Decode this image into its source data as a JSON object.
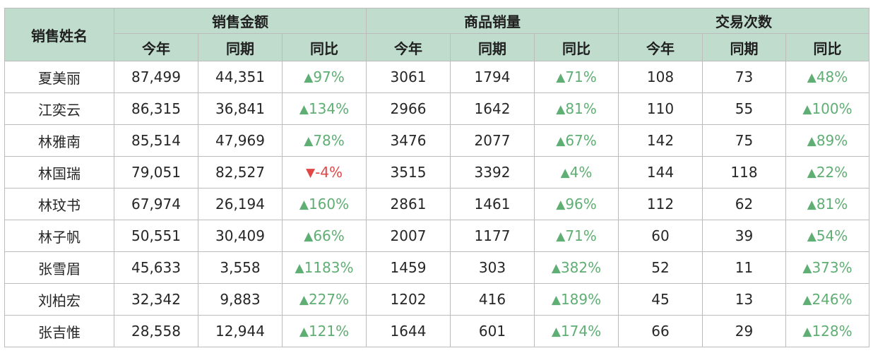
{
  "headers": {
    "name": "销售姓名",
    "groups": [
      "销售金额",
      "商品销量",
      "交易次数"
    ],
    "sub": [
      "今年",
      "同期",
      "同比"
    ]
  },
  "arrows": {
    "up": "▲",
    "down": "▼"
  },
  "colors": {
    "header_bg": "#bfdccc",
    "up": "#5fae73",
    "down": "#e04848"
  },
  "rows": [
    {
      "name": "夏美丽",
      "amount": {
        "cur": "87,499",
        "prev": "44,351",
        "dir": "up",
        "pct": "97%"
      },
      "qty": {
        "cur": "3061",
        "prev": "1794",
        "dir": "up",
        "pct": "71%"
      },
      "trades": {
        "cur": "108",
        "prev": "73",
        "dir": "up",
        "pct": "48%"
      }
    },
    {
      "name": "江奕云",
      "amount": {
        "cur": "86,315",
        "prev": "36,841",
        "dir": "up",
        "pct": "134%"
      },
      "qty": {
        "cur": "2966",
        "prev": "1642",
        "dir": "up",
        "pct": "81%"
      },
      "trades": {
        "cur": "110",
        "prev": "55",
        "dir": "up",
        "pct": "100%"
      }
    },
    {
      "name": "林雅南",
      "amount": {
        "cur": "85,514",
        "prev": "47,969",
        "dir": "up",
        "pct": "78%"
      },
      "qty": {
        "cur": "3476",
        "prev": "2077",
        "dir": "up",
        "pct": "67%"
      },
      "trades": {
        "cur": "142",
        "prev": "75",
        "dir": "up",
        "pct": "89%"
      }
    },
    {
      "name": "林国瑞",
      "amount": {
        "cur": "79,051",
        "prev": "82,527",
        "dir": "down",
        "pct": "-4%"
      },
      "qty": {
        "cur": "3515",
        "prev": "3392",
        "dir": "up",
        "pct": "4%"
      },
      "trades": {
        "cur": "144",
        "prev": "118",
        "dir": "up",
        "pct": "22%"
      }
    },
    {
      "name": "林玟书",
      "amount": {
        "cur": "67,974",
        "prev": "26,194",
        "dir": "up",
        "pct": "160%"
      },
      "qty": {
        "cur": "2861",
        "prev": "1461",
        "dir": "up",
        "pct": "96%"
      },
      "trades": {
        "cur": "112",
        "prev": "62",
        "dir": "up",
        "pct": "81%"
      }
    },
    {
      "name": "林子帆",
      "amount": {
        "cur": "50,551",
        "prev": "30,409",
        "dir": "up",
        "pct": "66%"
      },
      "qty": {
        "cur": "2007",
        "prev": "1177",
        "dir": "up",
        "pct": "71%"
      },
      "trades": {
        "cur": "60",
        "prev": "39",
        "dir": "up",
        "pct": "54%"
      }
    },
    {
      "name": "张雪眉",
      "amount": {
        "cur": "45,633",
        "prev": "3,558",
        "dir": "up",
        "pct": "1183%"
      },
      "qty": {
        "cur": "1459",
        "prev": "303",
        "dir": "up",
        "pct": "382%"
      },
      "trades": {
        "cur": "52",
        "prev": "11",
        "dir": "up",
        "pct": "373%"
      }
    },
    {
      "name": "刘柏宏",
      "amount": {
        "cur": "32,342",
        "prev": "9,883",
        "dir": "up",
        "pct": "227%"
      },
      "qty": {
        "cur": "1202",
        "prev": "416",
        "dir": "up",
        "pct": "189%"
      },
      "trades": {
        "cur": "45",
        "prev": "13",
        "dir": "up",
        "pct": "246%"
      }
    },
    {
      "name": "张吉惟",
      "amount": {
        "cur": "28,558",
        "prev": "12,944",
        "dir": "up",
        "pct": "121%"
      },
      "qty": {
        "cur": "1644",
        "prev": "601",
        "dir": "up",
        "pct": "174%"
      },
      "trades": {
        "cur": "66",
        "prev": "29",
        "dir": "up",
        "pct": "128%"
      }
    }
  ]
}
